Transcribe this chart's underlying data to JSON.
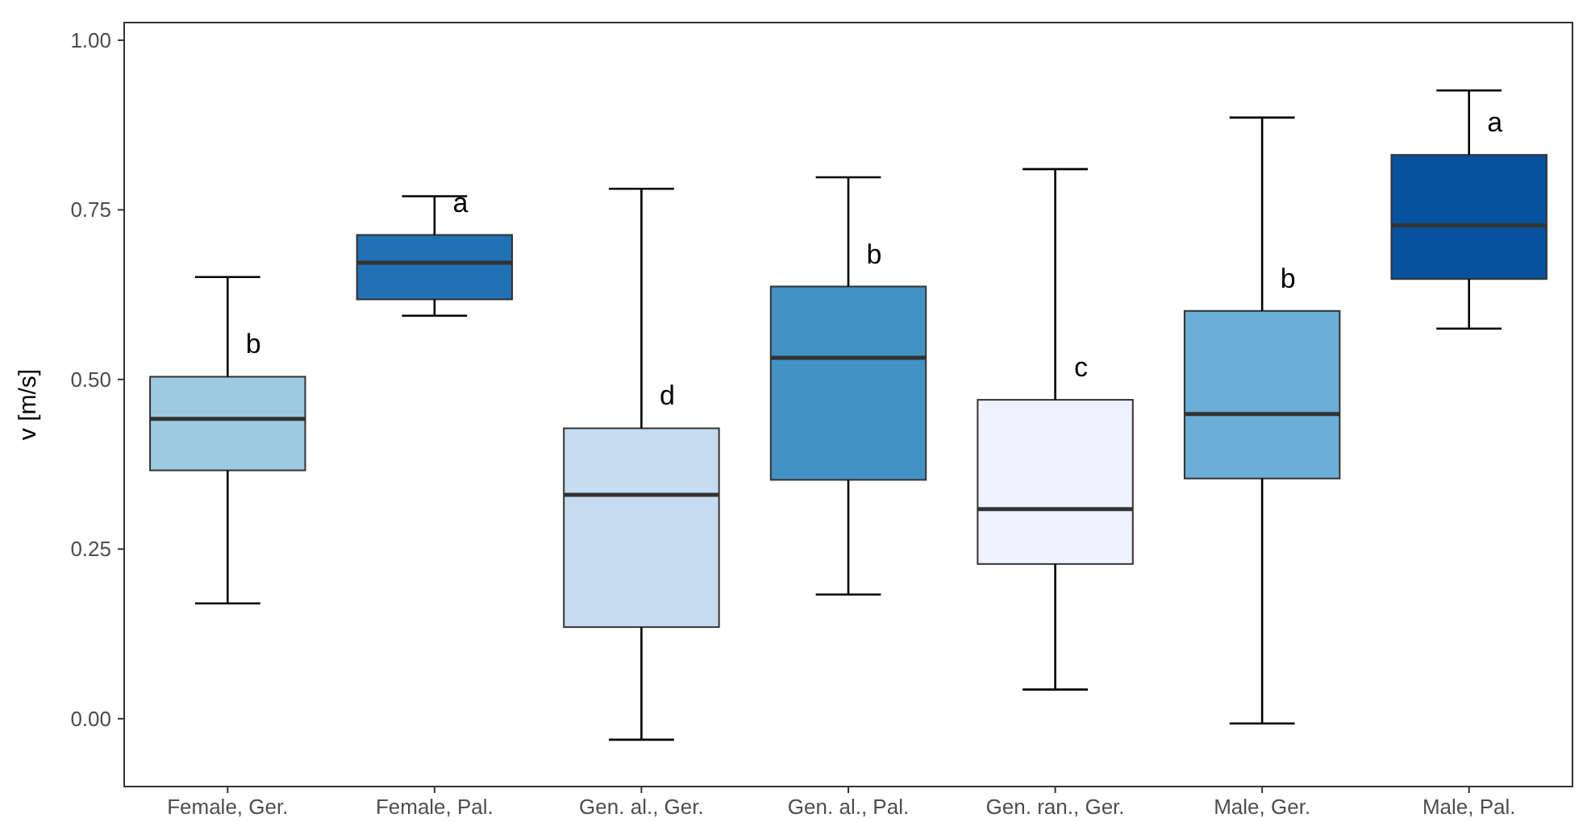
{
  "chart_data": {
    "type": "box",
    "ylabel": "v [m/s]",
    "categories": [
      "Female, Ger.",
      "Female, Pal.",
      "Gen. al., Ger.",
      "Gen. al., Pal.",
      "Gen. ran., Ger.",
      "Male, Ger.",
      "Male, Pal."
    ],
    "colors": [
      "#9ecae1",
      "#2171b5",
      "#c6dbef",
      "#4292c6",
      "#eff3ff",
      "#6baed6",
      "#08519c"
    ],
    "boxes": [
      {
        "low": 0.17,
        "q1": 0.366,
        "median": 0.442,
        "q3": 0.504,
        "high": 0.651
      },
      {
        "low": 0.594,
        "q1": 0.618,
        "median": 0.672,
        "q3": 0.713,
        "high": 0.77
      },
      {
        "low": -0.031,
        "q1": 0.135,
        "median": 0.33,
        "q3": 0.428,
        "high": 0.781
      },
      {
        "low": 0.183,
        "q1": 0.352,
        "median": 0.532,
        "q3": 0.637,
        "high": 0.798
      },
      {
        "low": 0.043,
        "q1": 0.228,
        "median": 0.309,
        "q3": 0.47,
        "high": 0.81
      },
      {
        "low": -0.007,
        "q1": 0.354,
        "median": 0.449,
        "q3": 0.601,
        "high": 0.886
      },
      {
        "low": 0.575,
        "q1": 0.648,
        "median": 0.727,
        "q3": 0.831,
        "high": 0.926
      }
    ],
    "ylim": [
      -0.1,
      1.026
    ],
    "yticks": [
      {
        "value": 0,
        "label": "0.00"
      },
      {
        "value": 0.25,
        "label": "0.25"
      },
      {
        "value": 0.5,
        "label": "0.50"
      },
      {
        "value": 0.75,
        "label": "0.75"
      },
      {
        "value": 1,
        "label": "1.00"
      }
    ],
    "grid": false,
    "annotations": [
      "b",
      "a",
      "d",
      "b",
      "c",
      "b",
      "a"
    ]
  }
}
